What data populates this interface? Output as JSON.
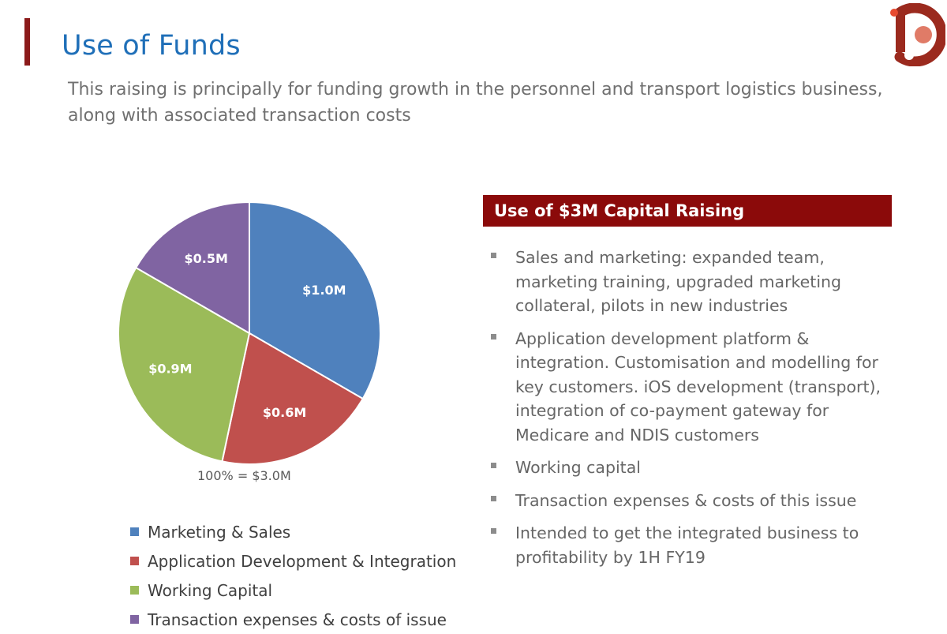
{
  "slide": {
    "title": "Use of Funds",
    "subtitle": "This raising is principally for funding growth in the personnel and transport logistics business, along with associated transaction costs"
  },
  "colors": {
    "accent": "#8b1a1a",
    "title": "#1f6fb8",
    "panel_header": "#8b0a0a"
  },
  "chart_data": {
    "type": "pie",
    "unit": "$M",
    "total_label": "100% = $3.0M",
    "slices": [
      {
        "name": "Marketing & Sales",
        "value": 1.0,
        "label": "$1.0M",
        "color": "#4f81bd"
      },
      {
        "name": "Application Development & Integration",
        "value": 0.6,
        "label": "$0.6M",
        "color": "#c0504d"
      },
      {
        "name": "Working Capital",
        "value": 0.9,
        "label": "$0.9M",
        "color": "#9bbb59"
      },
      {
        "name": "Transaction expenses & costs of issue",
        "value": 0.5,
        "label": "$0.5M",
        "color": "#8064a2"
      }
    ],
    "legend_placement": "bottom"
  },
  "panel": {
    "header": "Use of $3M Capital Raising",
    "bullets": [
      "Sales and marketing: expanded team, marketing training, upgraded marketing collateral, pilots in new industries",
      "Application development platform & integration. Customisation and modelling for key customers. iOS development (transport), integration of co-payment gateway for Medicare and NDIS customers",
      "Working capital",
      "Transaction expenses & costs of this issue",
      "Intended to get the integrated business to profitability by 1H FY19"
    ]
  }
}
